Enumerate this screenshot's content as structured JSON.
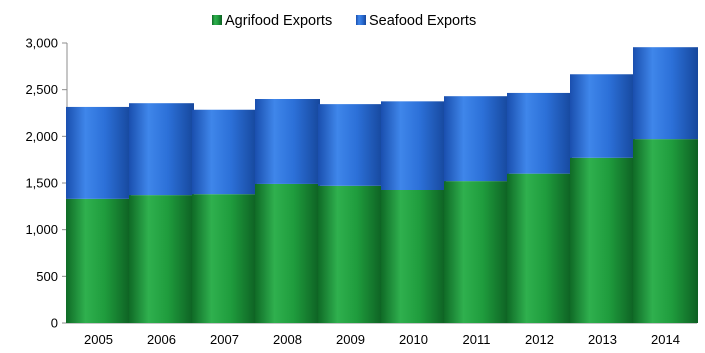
{
  "chart_data": {
    "type": "bar",
    "stacked": true,
    "categories": [
      "2005",
      "2006",
      "2007",
      "2008",
      "2009",
      "2010",
      "2011",
      "2012",
      "2013",
      "2014"
    ],
    "series": [
      {
        "name": "Agrifood Exports",
        "color": "#1e9a3c",
        "values": [
          1330,
          1370,
          1380,
          1490,
          1470,
          1425,
          1520,
          1600,
          1770,
          1970
        ]
      },
      {
        "name": "Seafood Exports",
        "color": "#2b6fd6",
        "values": [
          985,
          985,
          905,
          910,
          875,
          950,
          910,
          865,
          895,
          985
        ]
      }
    ],
    "title": "",
    "xlabel": "",
    "ylabel": "",
    "ylim": [
      0,
      3000
    ],
    "yticks": [
      0,
      500,
      1000,
      1500,
      2000,
      2500,
      3000
    ],
    "ytick_labels": [
      "0",
      "500",
      "1,000",
      "1,500",
      "2,000",
      "2,500",
      "3,000"
    ],
    "grid": false,
    "legend": {
      "position": "top-center"
    }
  }
}
